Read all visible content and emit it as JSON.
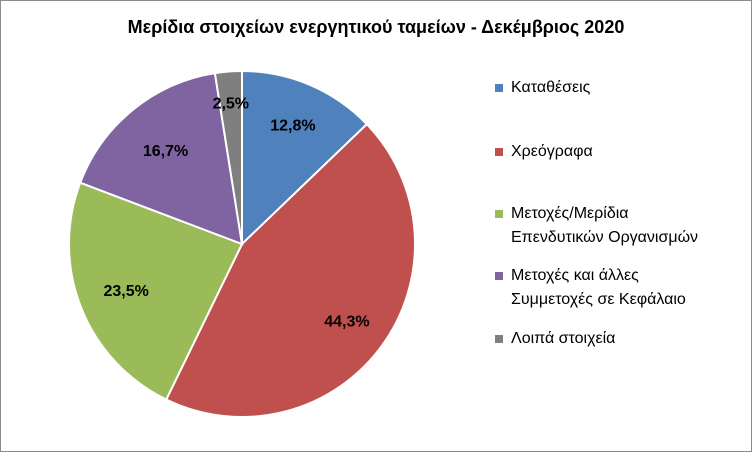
{
  "chart_data": {
    "type": "pie",
    "title": "Μερίδια στοιχείων ενεργητικού ταμείων - Δεκέμβριος 2020",
    "slices": [
      {
        "label": "Καταθέσεις",
        "value": 12.8,
        "display": "12,8%",
        "color": "#4f81bd"
      },
      {
        "label": "Χρεόγραφα",
        "value": 44.3,
        "display": "44,3%",
        "color": "#c0504d"
      },
      {
        "label": "Μετοχές/Μερίδια Επενδυτικών Οργανισμών",
        "lines": [
          "Μετοχές/Μερίδια",
          "Επενδυτικών Οργανισμών"
        ],
        "value": 23.5,
        "display": "23,5%",
        "color": "#9bbb59"
      },
      {
        "label": "Μετοχές και άλλες Συμμετοχές σε Κεφάλαιο",
        "lines": [
          "Μετοχές και άλλες",
          "Συμμετοχές σε Κεφάλαιο"
        ],
        "value": 16.7,
        "display": "16,7%",
        "color": "#8064a2"
      },
      {
        "label": "Λοιπά στοιχεία",
        "value": 2.5,
        "display": "2,5%",
        "color": "#7f7f7f"
      }
    ],
    "legend_position": "right"
  }
}
